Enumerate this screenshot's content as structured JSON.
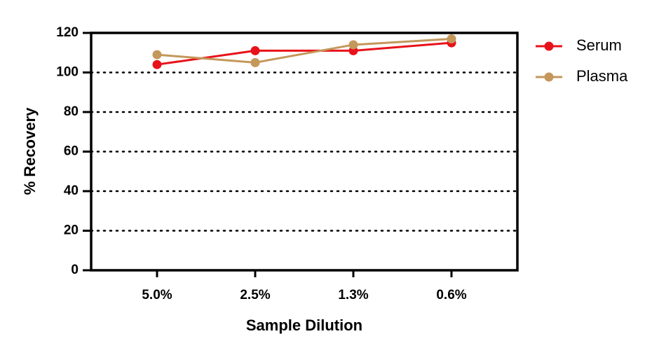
{
  "chart_data": {
    "type": "line",
    "categories": [
      "5.0%",
      "2.5%",
      "1.3%",
      "0.6%"
    ],
    "series": [
      {
        "name": "Serum",
        "color": "#e8121a",
        "values": [
          104,
          111,
          111,
          115
        ]
      },
      {
        "name": "Plasma",
        "color": "#c4975a",
        "values": [
          109,
          105,
          114,
          117
        ]
      }
    ],
    "x_label": "Sample Dilution",
    "y_label": "% Recovery",
    "ylim": [
      0,
      120
    ],
    "yticks": [
      0,
      20,
      40,
      60,
      80,
      100,
      120
    ],
    "grid": true,
    "legend": "right"
  }
}
